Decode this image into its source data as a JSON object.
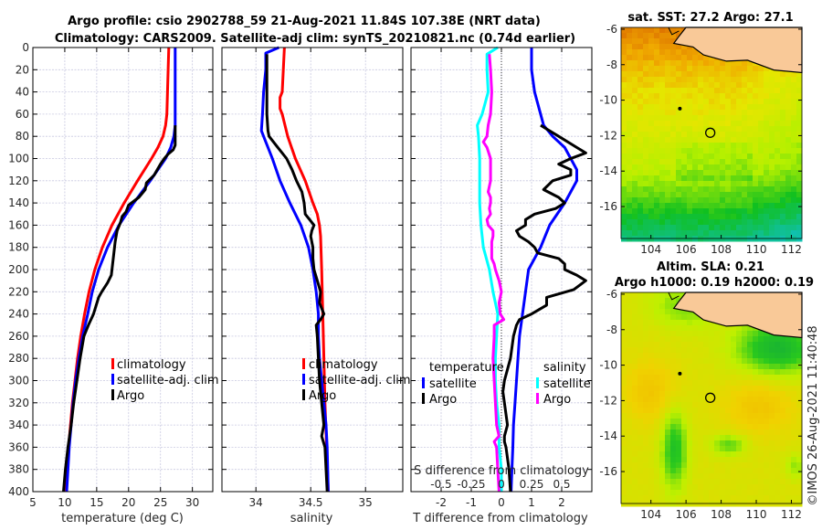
{
  "chart_data": [
    {
      "type": "line",
      "id": "temperature",
      "title_lines": [
        "Argo profile: csio 2902788_59 21-Aug-2021 11.84S 107.38E (NRT data)",
        "Climatology: CARS2009. Satellite-adj clim: synTS_20210821.nc (0.74d earlier)"
      ],
      "xlabel": "temperature (deg C)",
      "ylabel": "",
      "xlim": [
        5,
        33.2
      ],
      "ylim": [
        400,
        0
      ],
      "xticks": [
        5,
        10,
        15,
        20,
        25,
        30
      ],
      "yticks": [
        0,
        20,
        40,
        60,
        80,
        100,
        120,
        140,
        160,
        180,
        200,
        220,
        240,
        260,
        280,
        300,
        320,
        340,
        360,
        380,
        400
      ],
      "grid": true,
      "legend_placement": "center-right",
      "series": [
        {
          "name": "climatology",
          "color": "#ff0000",
          "depth": [
            0,
            20,
            40,
            60,
            70,
            80,
            90,
            100,
            120,
            140,
            160,
            180,
            200,
            220,
            240,
            260,
            280,
            300,
            320,
            340,
            360,
            380,
            400
          ],
          "values": [
            26.3,
            26.2,
            26.1,
            26.0,
            25.8,
            25.4,
            24.6,
            23.6,
            21.4,
            19.3,
            17.4,
            15.9,
            14.7,
            13.8,
            13.1,
            12.5,
            12.0,
            11.6,
            11.2,
            10.9,
            10.6,
            10.3,
            10.0
          ]
        },
        {
          "name": "satellite-adj. clim",
          "color": "#0000ff",
          "depth": [
            0,
            20,
            40,
            60,
            70,
            80,
            90,
            100,
            120,
            140,
            160,
            180,
            200,
            220,
            240,
            260,
            280,
            300,
            320,
            340,
            360,
            380,
            400
          ],
          "values": [
            27.3,
            27.3,
            27.3,
            27.3,
            27.3,
            27.1,
            26.6,
            25.8,
            23.4,
            20.8,
            18.5,
            16.7,
            15.3,
            14.3,
            13.6,
            12.8,
            12.2,
            11.7,
            11.3,
            11.0,
            10.7,
            10.5,
            10.3
          ]
        },
        {
          "name": "Argo",
          "color": "#000000",
          "depth": [
            70,
            80,
            88,
            92,
            96,
            100,
            105,
            115,
            122,
            128,
            135,
            142,
            148,
            152,
            158,
            165,
            175,
            185,
            195,
            205,
            212,
            220,
            225,
            240,
            250,
            260,
            280,
            300,
            320,
            340,
            360,
            380,
            400
          ],
          "values": [
            27.3,
            27.3,
            27.3,
            27.0,
            26.2,
            25.6,
            25.0,
            24.0,
            22.8,
            22.6,
            21.6,
            20.0,
            19.6,
            19.0,
            18.7,
            18.2,
            17.9,
            17.7,
            17.5,
            17.3,
            16.7,
            15.8,
            15.3,
            14.5,
            13.7,
            13.0,
            12.4,
            11.9,
            11.4,
            11.0,
            10.5,
            10.1,
            9.8
          ]
        }
      ]
    },
    {
      "type": "line",
      "id": "salinity",
      "xlabel": "salinity",
      "xlim": [
        33.69,
        35.34
      ],
      "ylim": [
        400,
        0
      ],
      "xticks": [
        34,
        34.5,
        35
      ],
      "xtick_labels": [
        "34",
        "34.5",
        "35"
      ],
      "grid": true,
      "legend_placement": "center-right",
      "series": [
        {
          "name": "climatology",
          "color": "#ff0000",
          "depth": [
            0,
            20,
            40,
            45,
            55,
            60,
            80,
            100,
            120,
            140,
            150,
            160,
            170,
            200,
            240,
            280,
            320,
            360,
            400
          ],
          "values": [
            34.26,
            34.25,
            34.24,
            34.22,
            34.22,
            34.24,
            34.29,
            34.36,
            34.45,
            34.52,
            34.56,
            34.58,
            34.59,
            34.6,
            34.61,
            34.62,
            34.63,
            34.645,
            34.66
          ]
        },
        {
          "name": "satellite-adj. clim",
          "color": "#0000ff",
          "depth": [
            0,
            5,
            20,
            40,
            60,
            75,
            80,
            100,
            120,
            140,
            160,
            180,
            200,
            220,
            240,
            260,
            280,
            300,
            320,
            340,
            360,
            400
          ],
          "values": [
            34.21,
            34.09,
            34.09,
            34.07,
            34.06,
            34.05,
            34.07,
            34.15,
            34.22,
            34.31,
            34.41,
            34.48,
            34.52,
            34.55,
            34.57,
            34.57,
            34.58,
            34.6,
            34.62,
            34.64,
            34.65,
            34.66
          ]
        },
        {
          "name": "Argo",
          "color": "#000000",
          "depth": [
            6,
            20,
            40,
            60,
            75,
            80,
            90,
            100,
            110,
            120,
            130,
            140,
            150,
            155,
            160,
            165,
            170,
            180,
            190,
            200,
            210,
            220,
            230,
            240,
            245,
            250,
            260,
            280,
            300,
            320,
            340,
            350,
            360,
            380,
            400
          ],
          "values": [
            34.1,
            34.1,
            34.1,
            34.1,
            34.11,
            34.12,
            34.2,
            34.28,
            34.33,
            34.37,
            34.42,
            34.44,
            34.45,
            34.49,
            34.53,
            34.51,
            34.5,
            34.52,
            34.52,
            34.53,
            34.56,
            34.59,
            34.58,
            34.62,
            34.59,
            34.55,
            34.56,
            34.57,
            34.58,
            34.6,
            34.62,
            34.6,
            34.63,
            34.64,
            34.65
          ]
        }
      ]
    },
    {
      "type": "line",
      "id": "differences",
      "xlabel": "T difference from climatology",
      "xlim": [
        -3.0,
        3.0
      ],
      "xticks": [
        -2,
        -1,
        0,
        1,
        2
      ],
      "secondary_xlabel": "S difference from climatology",
      "secondary_xlim": [
        -0.75,
        0.75
      ],
      "secondary_xticks": [
        -0.5,
        -0.25,
        0,
        0.25,
        0.5
      ],
      "secondary_xtick_labels": [
        "-0.5",
        "-0.25",
        "0",
        "0.25",
        "0.5"
      ],
      "ylim": [
        400,
        0
      ],
      "grid": true,
      "zero_line": "dotted",
      "legend_groups": [
        {
          "title": "temperature",
          "entries": [
            {
              "name": "satellite",
              "color": "#0000ff"
            },
            {
              "name": "Argo",
              "color": "#000000"
            }
          ]
        },
        {
          "title": "salinity",
          "entries": [
            {
              "name": "satellite",
              "color": "#00ffff"
            },
            {
              "name": "Argo",
              "color": "#ff00ff"
            }
          ]
        }
      ],
      "series": [
        {
          "name": "temperature satellite",
          "quantity": "T",
          "color": "#0000ff",
          "depth": [
            0,
            20,
            40,
            60,
            70,
            80,
            90,
            100,
            110,
            120,
            140,
            160,
            180,
            200,
            220,
            240,
            260,
            280,
            300,
            320,
            340,
            360,
            380,
            400
          ],
          "values": [
            1.0,
            1.0,
            1.1,
            1.3,
            1.4,
            1.7,
            2.1,
            2.3,
            2.5,
            2.5,
            2.1,
            1.6,
            1.3,
            0.9,
            0.8,
            0.7,
            0.6,
            0.55,
            0.5,
            0.45,
            0.4,
            0.38,
            0.35,
            0.32
          ]
        },
        {
          "name": "temperature Argo",
          "quantity": "T",
          "color": "#000000",
          "depth": [
            70,
            80,
            90,
            95,
            100,
            105,
            110,
            115,
            120,
            128,
            135,
            140,
            145,
            150,
            155,
            160,
            165,
            170,
            175,
            180,
            185,
            190,
            195,
            200,
            205,
            210,
            218,
            225,
            232,
            240,
            245,
            250,
            260,
            280,
            300,
            310,
            320,
            340,
            350,
            355,
            360,
            380,
            400
          ],
          "values": [
            1.3,
            1.9,
            2.5,
            2.8,
            2.3,
            1.9,
            2.3,
            2.3,
            1.7,
            1.4,
            1.9,
            2.1,
            1.8,
            1.1,
            0.8,
            0.8,
            0.5,
            0.6,
            0.9,
            1.1,
            1.2,
            1.9,
            2.1,
            2.1,
            2.5,
            2.8,
            2.4,
            1.5,
            1.5,
            1.0,
            0.6,
            0.5,
            0.4,
            0.3,
            0.1,
            0.05,
            0.1,
            0.2,
            0.1,
            0.1,
            0.15,
            0.25,
            0.3
          ]
        },
        {
          "name": "salinity satellite",
          "quantity": "S",
          "color": "#00ffff",
          "depth": [
            0,
            6,
            20,
            40,
            60,
            70,
            80,
            100,
            120,
            140,
            160,
            180,
            200,
            220,
            240,
            260,
            280,
            300,
            320,
            340,
            360,
            380,
            400
          ],
          "values": [
            -0.03,
            -0.12,
            -0.12,
            -0.11,
            -0.16,
            -0.2,
            -0.19,
            -0.18,
            -0.18,
            -0.18,
            -0.17,
            -0.15,
            -0.1,
            -0.07,
            -0.03,
            -0.04,
            -0.05,
            -0.05,
            -0.04,
            -0.02,
            -0.02,
            0.0,
            0.0
          ]
        },
        {
          "name": "salinity Argo",
          "quantity": "S",
          "color": "#ff00ff",
          "depth": [
            6,
            20,
            40,
            60,
            70,
            80,
            85,
            90,
            100,
            110,
            120,
            130,
            135,
            140,
            145,
            150,
            155,
            160,
            165,
            170,
            175,
            180,
            185,
            190,
            195,
            200,
            210,
            220,
            230,
            240,
            245,
            250,
            260,
            280,
            300,
            320,
            340,
            350,
            355,
            360,
            380,
            400
          ],
          "values": [
            -0.1,
            -0.09,
            -0.08,
            -0.09,
            -0.11,
            -0.12,
            -0.15,
            -0.12,
            -0.09,
            -0.09,
            -0.09,
            -0.11,
            -0.09,
            -0.09,
            -0.1,
            -0.09,
            -0.12,
            -0.11,
            -0.07,
            -0.07,
            -0.08,
            -0.08,
            -0.08,
            -0.08,
            -0.06,
            -0.05,
            -0.02,
            0.0,
            -0.02,
            -0.01,
            0.02,
            -0.06,
            -0.06,
            -0.07,
            -0.06,
            -0.05,
            -0.04,
            -0.02,
            -0.06,
            -0.04,
            -0.03,
            -0.02
          ]
        }
      ]
    },
    {
      "type": "heatmap",
      "id": "sst-map",
      "title": "sat. SST: 27.2 Argo: 27.1",
      "xlim": [
        102.3,
        112.6
      ],
      "ylim": [
        -17.8,
        -5.9
      ],
      "xticks": [
        104,
        106,
        108,
        110,
        112
      ],
      "yticks": [
        -6,
        -8,
        -10,
        -12,
        -14,
        -16
      ],
      "float_position": {
        "lon": 107.38,
        "lat": -11.84
      },
      "colors": {
        "land": "#f9c998",
        "warm": "#e07a00",
        "mid": "#b4f000",
        "cool": "#10c020",
        "cold": "#10c0a0"
      }
    },
    {
      "type": "heatmap",
      "id": "sla-map",
      "title_lines": [
        "Altim. SLA: 0.21",
        "Argo h1000: 0.19 h2000: 0.19"
      ],
      "xlim": [
        102.3,
        112.6
      ],
      "ylim": [
        -17.8,
        -5.9
      ],
      "xticks": [
        104,
        106,
        108,
        110,
        112
      ],
      "yticks": [
        -6,
        -8,
        -10,
        -12,
        -14,
        -16
      ],
      "float_position": {
        "lon": 107.38,
        "lat": -11.84
      },
      "colors": {
        "land": "#f9c998",
        "high": "#f4c800",
        "mid": "#c8f000",
        "low": "#20c020"
      }
    }
  ],
  "footer": {
    "credit": "©IMOS 26-Aug-2021 11:40:48"
  },
  "titles": {
    "line1": "Argo profile: csio 2902788_59 21-Aug-2021 11.84S 107.38E (NRT data)",
    "line2": "Climatology: CARS2009. Satellite-adj clim: synTS_20210821.nc (0.74d earlier)",
    "sst": "sat. SST: 27.2 Argo: 27.1",
    "sla1": "Altim. SLA: 0.21",
    "sla2": "Argo h1000: 0.19 h2000: 0.19"
  },
  "labels": {
    "temperature_xlabel": "temperature (deg C)",
    "salinity_xlabel": "salinity",
    "tdiff_xlabel": "T difference from climatology",
    "sdiff_xlabel": "S difference from climatology"
  },
  "legend": {
    "temp": [
      "climatology",
      "satellite-adj. clim",
      "Argo"
    ],
    "sal": [
      "climatology",
      "satellite-adj. clim",
      "Argo"
    ],
    "diff_temp_title": "temperature",
    "diff_sal_title": "salinity",
    "diff_temp": [
      "satellite",
      "Argo"
    ],
    "diff_sal": [
      "satellite",
      "Argo"
    ]
  }
}
